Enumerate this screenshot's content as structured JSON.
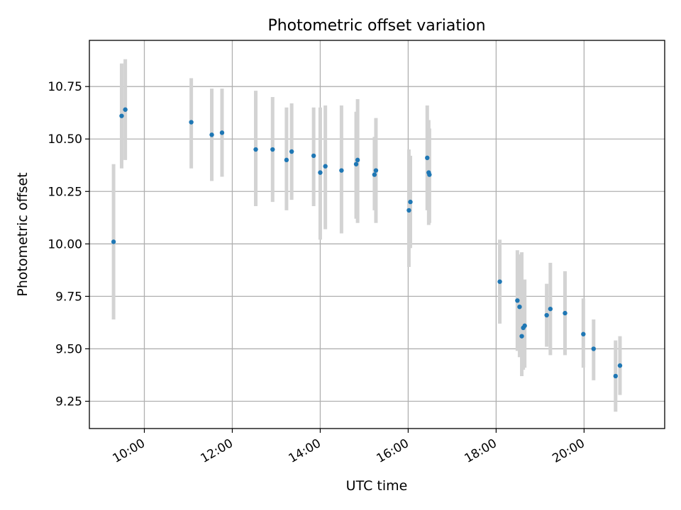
{
  "chart_data": {
    "type": "scatter",
    "title": "Photometric offset variation",
    "xlabel": "UTC time",
    "ylabel": "Photometric offset",
    "x_ticks": [
      "10:00",
      "12:00",
      "14:00",
      "16:00",
      "18:00",
      "20:00"
    ],
    "y_ticks": [
      "9.25",
      "9.50",
      "9.75",
      "10.00",
      "10.25",
      "10.50",
      "10.75"
    ],
    "xlim": [
      "08:45",
      "21:50"
    ],
    "ylim": [
      9.12,
      10.97
    ],
    "grid": true,
    "marker_color": "#1f77b4",
    "errorbar_color": "#d3d3d3",
    "points": [
      {
        "t": "09:18",
        "y": 10.01,
        "lo": 9.64,
        "hi": 10.38
      },
      {
        "t": "09:29",
        "y": 10.61,
        "lo": 10.36,
        "hi": 10.86
      },
      {
        "t": "09:34",
        "y": 10.64,
        "lo": 10.4,
        "hi": 10.88
      },
      {
        "t": "11:04",
        "y": 10.58,
        "lo": 10.36,
        "hi": 10.79
      },
      {
        "t": "11:32",
        "y": 10.52,
        "lo": 10.3,
        "hi": 10.74
      },
      {
        "t": "11:46",
        "y": 10.53,
        "lo": 10.32,
        "hi": 10.74
      },
      {
        "t": "12:32",
        "y": 10.45,
        "lo": 10.18,
        "hi": 10.73
      },
      {
        "t": "12:55",
        "y": 10.45,
        "lo": 10.2,
        "hi": 10.7
      },
      {
        "t": "13:14",
        "y": 10.4,
        "lo": 10.16,
        "hi": 10.65
      },
      {
        "t": "13:21",
        "y": 10.44,
        "lo": 10.21,
        "hi": 10.67
      },
      {
        "t": "13:51",
        "y": 10.42,
        "lo": 10.18,
        "hi": 10.65
      },
      {
        "t": "14:00",
        "y": 10.34,
        "lo": 10.02,
        "hi": 10.65
      },
      {
        "t": "14:07",
        "y": 10.37,
        "lo": 10.07,
        "hi": 10.66
      },
      {
        "t": "14:29",
        "y": 10.35,
        "lo": 10.05,
        "hi": 10.66
      },
      {
        "t": "14:49",
        "y": 10.38,
        "lo": 10.12,
        "hi": 10.63
      },
      {
        "t": "14:51",
        "y": 10.4,
        "lo": 10.1,
        "hi": 10.69
      },
      {
        "t": "15:14",
        "y": 10.33,
        "lo": 10.16,
        "hi": 10.51
      },
      {
        "t": "15:16",
        "y": 10.35,
        "lo": 10.1,
        "hi": 10.6
      },
      {
        "t": "16:01",
        "y": 10.16,
        "lo": 9.89,
        "hi": 10.45
      },
      {
        "t": "16:03",
        "y": 10.2,
        "lo": 9.98,
        "hi": 10.42
      },
      {
        "t": "16:26",
        "y": 10.41,
        "lo": 10.16,
        "hi": 10.66
      },
      {
        "t": "16:28",
        "y": 10.34,
        "lo": 10.09,
        "hi": 10.59
      },
      {
        "t": "16:29",
        "y": 10.33,
        "lo": 10.1,
        "hi": 10.55
      },
      {
        "t": "18:05",
        "y": 9.82,
        "lo": 9.62,
        "hi": 10.02
      },
      {
        "t": "18:29",
        "y": 9.73,
        "lo": 9.49,
        "hi": 9.97
      },
      {
        "t": "18:32",
        "y": 9.7,
        "lo": 9.46,
        "hi": 9.95
      },
      {
        "t": "18:35",
        "y": 9.56,
        "lo": 9.37,
        "hi": 9.96
      },
      {
        "t": "18:37",
        "y": 9.6,
        "lo": 9.4,
        "hi": 9.81
      },
      {
        "t": "18:39",
        "y": 9.61,
        "lo": 9.41,
        "hi": 9.83
      },
      {
        "t": "19:09",
        "y": 9.66,
        "lo": 9.51,
        "hi": 9.81
      },
      {
        "t": "19:14",
        "y": 9.69,
        "lo": 9.47,
        "hi": 9.91
      },
      {
        "t": "19:34",
        "y": 9.67,
        "lo": 9.47,
        "hi": 9.87
      },
      {
        "t": "19:59",
        "y": 9.57,
        "lo": 9.41,
        "hi": 9.74
      },
      {
        "t": "20:13",
        "y": 9.5,
        "lo": 9.35,
        "hi": 9.64
      },
      {
        "t": "20:43",
        "y": 9.37,
        "lo": 9.2,
        "hi": 9.54
      },
      {
        "t": "20:49",
        "y": 9.42,
        "lo": 9.28,
        "hi": 9.56
      }
    ]
  }
}
